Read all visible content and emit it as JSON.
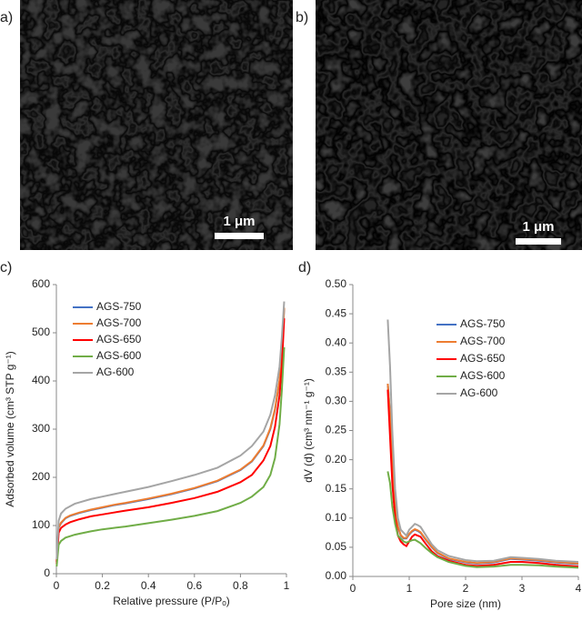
{
  "panels": {
    "a": "a)",
    "b": "b)",
    "c": "c)",
    "d": "d)"
  },
  "scale_bars": [
    "1 μm",
    "1 μm"
  ],
  "chart_data": [
    {
      "type": "line",
      "ylabel": "Adsorbed volume (cm³ STP g⁻¹)",
      "xlabel": "Relative pressure (P/Pₒ)",
      "xlim": [
        0,
        1
      ],
      "xticks": [
        0,
        0.2,
        0.4,
        0.6,
        0.8,
        1
      ],
      "ylim": [
        0,
        600
      ],
      "yticks": [
        0,
        100,
        200,
        300,
        400,
        500,
        600
      ],
      "x": [
        0.001,
        0.01,
        0.02,
        0.04,
        0.06,
        0.08,
        0.1,
        0.15,
        0.2,
        0.25,
        0.3,
        0.4,
        0.5,
        0.6,
        0.7,
        0.8,
        0.85,
        0.9,
        0.93,
        0.95,
        0.97,
        0.98,
        0.99
      ],
      "series": [
        {
          "name": "AGS-750",
          "color": "#4472c4",
          "values": [
            25,
            95,
            105,
            115,
            120,
            123,
            126,
            132,
            137,
            142,
            146,
            155,
            165,
            177,
            192,
            215,
            233,
            265,
            300,
            340,
            400,
            460,
            550
          ]
        },
        {
          "name": "AGS-700",
          "color": "#ed7d31",
          "values": [
            25,
            96,
            106,
            116,
            121,
            124,
            127,
            133,
            138,
            143,
            147,
            156,
            166,
            178,
            193,
            216,
            234,
            266,
            302,
            342,
            402,
            462,
            552
          ]
        },
        {
          "name": "AGS-650",
          "color": "#ff0000",
          "values": [
            20,
            85,
            95,
            102,
            107,
            110,
            113,
            119,
            123,
            127,
            131,
            138,
            147,
            157,
            170,
            190,
            205,
            235,
            265,
            305,
            370,
            430,
            530
          ]
        },
        {
          "name": "AGS-600",
          "color": "#70ad47",
          "values": [
            15,
            60,
            68,
            75,
            78,
            81,
            83,
            88,
            92,
            95,
            98,
            105,
            112,
            120,
            130,
            147,
            160,
            180,
            205,
            240,
            310,
            380,
            470
          ]
        },
        {
          "name": "AG-600",
          "color": "#a5a5a5",
          "values": [
            30,
            110,
            125,
            135,
            140,
            145,
            148,
            155,
            160,
            165,
            170,
            180,
            192,
            205,
            220,
            245,
            265,
            295,
            330,
            370,
            430,
            490,
            565
          ]
        }
      ]
    },
    {
      "type": "line",
      "ylabel": "dV (d) (cm³ nm⁻¹ g⁻¹)",
      "xlabel": "Pore size (nm)",
      "xlim": [
        0,
        4
      ],
      "xticks": [
        0,
        1,
        2,
        3,
        4
      ],
      "ylim": [
        0,
        0.5
      ],
      "yticks": [
        {
          "value": 0,
          "label": "0.00"
        },
        {
          "value": 0.05,
          "label": "0.05"
        },
        {
          "value": 0.1,
          "label": "0.10"
        },
        {
          "value": 0.15,
          "label": "0.15"
        },
        {
          "value": 0.2,
          "label": "0.20"
        },
        {
          "value": 0.25,
          "label": "0.25"
        },
        {
          "value": 0.3,
          "label": "0.30"
        },
        {
          "value": 0.35,
          "label": "0.35"
        },
        {
          "value": 0.4,
          "label": "0.40"
        },
        {
          "value": 0.45,
          "label": "0.45"
        },
        {
          "value": 0.5,
          "label": "0.50"
        }
      ],
      "x": [
        0.62,
        0.66,
        0.7,
        0.75,
        0.8,
        0.85,
        0.9,
        0.95,
        1.0,
        1.05,
        1.1,
        1.15,
        1.2,
        1.3,
        1.4,
        1.5,
        1.7,
        2.0,
        2.2,
        2.5,
        2.8,
        3.0,
        3.3,
        3.6,
        4.0
      ],
      "series": [
        {
          "name": "AGS-750",
          "color": "#4472c4",
          "values": [
            0.33,
            0.28,
            0.2,
            0.12,
            0.085,
            0.07,
            0.065,
            0.065,
            0.072,
            0.077,
            0.08,
            0.078,
            0.075,
            0.062,
            0.05,
            0.04,
            0.03,
            0.024,
            0.022,
            0.024,
            0.03,
            0.029,
            0.027,
            0.024,
            0.021
          ]
        },
        {
          "name": "AGS-700",
          "color": "#ed7d31",
          "values": [
            0.33,
            0.28,
            0.2,
            0.12,
            0.086,
            0.071,
            0.066,
            0.066,
            0.073,
            0.078,
            0.081,
            0.079,
            0.076,
            0.063,
            0.051,
            0.041,
            0.031,
            0.025,
            0.023,
            0.025,
            0.031,
            0.03,
            0.028,
            0.025,
            0.022
          ]
        },
        {
          "name": "AGS-650",
          "color": "#ff0000",
          "values": [
            0.32,
            0.24,
            0.16,
            0.1,
            0.07,
            0.06,
            0.055,
            0.052,
            0.06,
            0.068,
            0.072,
            0.07,
            0.068,
            0.055,
            0.043,
            0.035,
            0.027,
            0.02,
            0.018,
            0.02,
            0.025,
            0.025,
            0.023,
            0.02,
            0.017
          ]
        },
        {
          "name": "AGS-600",
          "color": "#70ad47",
          "values": [
            0.18,
            0.16,
            0.12,
            0.09,
            0.07,
            0.065,
            0.06,
            0.058,
            0.06,
            0.062,
            0.063,
            0.06,
            0.057,
            0.048,
            0.04,
            0.033,
            0.025,
            0.018,
            0.016,
            0.017,
            0.02,
            0.02,
            0.019,
            0.017,
            0.015
          ]
        },
        {
          "name": "AG-600",
          "color": "#a5a5a5",
          "values": [
            0.44,
            0.36,
            0.25,
            0.15,
            0.1,
            0.08,
            0.075,
            0.07,
            0.08,
            0.085,
            0.09,
            0.088,
            0.085,
            0.07,
            0.055,
            0.045,
            0.035,
            0.028,
            0.026,
            0.027,
            0.033,
            0.032,
            0.03,
            0.027,
            0.025
          ]
        }
      ]
    }
  ]
}
